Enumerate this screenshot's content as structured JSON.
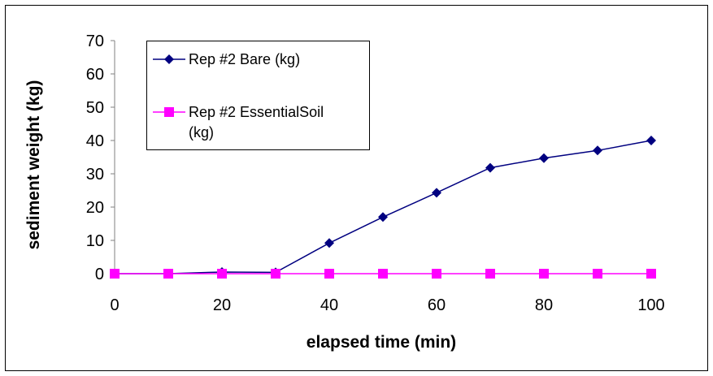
{
  "chart_data": {
    "type": "line",
    "title": "",
    "xlabel": "elapsed time (min)",
    "ylabel": "sediment weight (kg)",
    "xlim": [
      0,
      100
    ],
    "ylim": [
      0,
      70
    ],
    "xticks": [
      0,
      20,
      40,
      60,
      80,
      100
    ],
    "yticks": [
      0,
      10,
      20,
      30,
      40,
      50,
      60,
      70
    ],
    "grid": false,
    "legend_position": "top-left",
    "series": [
      {
        "name": "Rep #2 Bare (kg)",
        "color": "#000080",
        "marker": "diamond",
        "x": [
          0,
          10,
          20,
          30,
          40,
          50,
          60,
          70,
          80,
          90,
          100
        ],
        "y": [
          0,
          0,
          0.5,
          0.4,
          9.2,
          17,
          24.3,
          31.8,
          34.7,
          37,
          40
        ]
      },
      {
        "name": "Rep #2 EssentialSoil (kg)",
        "legend_lines": [
          "Rep #2 EssentialSoil",
          "(kg)"
        ],
        "color": "#ff00ff",
        "marker": "square",
        "x": [
          0,
          10,
          20,
          30,
          40,
          50,
          60,
          70,
          80,
          90,
          100
        ],
        "y": [
          0,
          0,
          0,
          0,
          0,
          0,
          0,
          0,
          0,
          0,
          0
        ]
      }
    ]
  }
}
